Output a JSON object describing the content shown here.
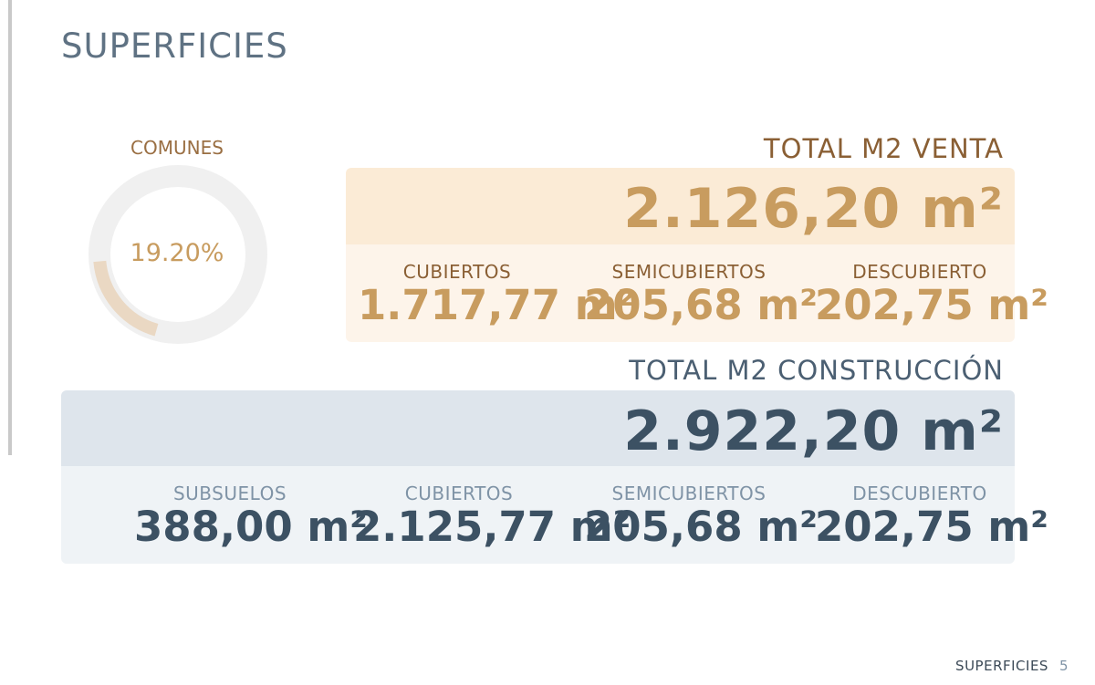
{
  "page": {
    "title": "SUPERFICIES"
  },
  "common": {
    "label": "COMUNES",
    "percent_text": "19.20%",
    "percent": 19.2
  },
  "sale": {
    "title": "TOTAL M2 VENTA",
    "total": "2.126,20 m²",
    "items": [
      {
        "label": "CUBIERTOS",
        "value": "1.717,77 m²"
      },
      {
        "label": "SEMICUBIERTOS",
        "value": "205,68 m²"
      },
      {
        "label": "DESCUBIERTO",
        "value": "202,75 m²"
      }
    ]
  },
  "build": {
    "title": "TOTAL M2 CONSTRUCCIÓN",
    "total": "2.922,20 m²",
    "items": [
      {
        "label": "SUBSUELOS",
        "value": "388,00 m²"
      },
      {
        "label": "CUBIERTOS",
        "value": "2.125,77 m²"
      },
      {
        "label": "SEMICUBIERTOS",
        "value": "205,68 m²"
      },
      {
        "label": "DESCUBIERTO",
        "value": "202,75 m²"
      }
    ]
  },
  "footer": {
    "section": "SUPERFICIES",
    "page_number": "5"
  },
  "colors": {
    "gold": "#c89c5f",
    "brown": "#8a5f34",
    "slate": "#3c5163",
    "donut_track": "#f0f0f0",
    "donut_fill": "#ead8c3"
  }
}
